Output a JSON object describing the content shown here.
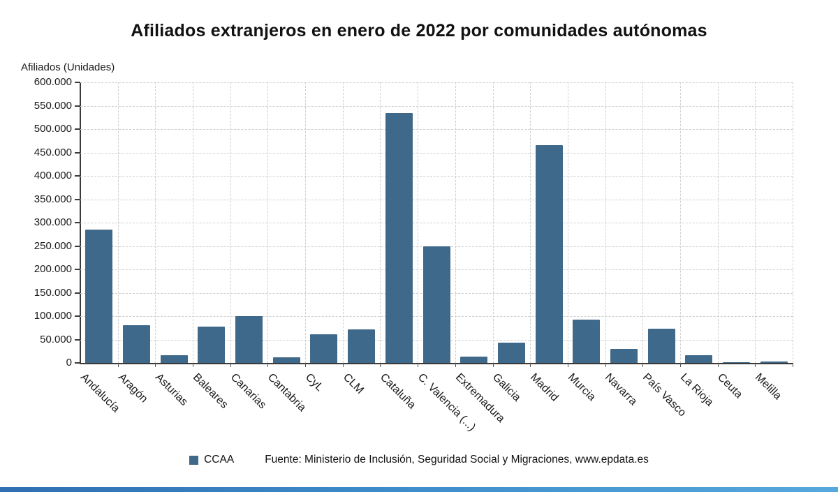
{
  "title": "Afiliados extranjeros en enero de 2022 por comunidades autónomas",
  "legend": {
    "label": "CCAA",
    "color": "#3f698a"
  },
  "source": {
    "prefix": "Fuente: Ministerio de Inclusión, Seguridad Social y Migraciones, ",
    "link": "www.epdata.es"
  },
  "chart_data": {
    "type": "bar",
    "title": "Afiliados extranjeros en enero de 2022 por comunidades autónomas",
    "ylabel": "Afiliados (Unidades)",
    "xlabel": "",
    "categories": [
      "Andalucía",
      "Aragón",
      "Asturias",
      "Baleares",
      "Canarias",
      "Cantabria",
      "CyL",
      "CLM",
      "Cataluña",
      "C. Valencia (...)",
      "Extremadura",
      "Galicia",
      "Madrid",
      "Murcia",
      "Navarra",
      "País Vasco",
      "La Rioja",
      "Ceuta",
      "Melilla"
    ],
    "values": [
      285000,
      80000,
      16000,
      77000,
      100000,
      12500,
      61000,
      72000,
      535000,
      250000,
      13000,
      44000,
      465000,
      92000,
      30000,
      73000,
      16500,
      2000,
      3500
    ],
    "ylim": [
      0,
      600000
    ],
    "ytick_labels": [
      "0",
      "50.000",
      "100.000",
      "150.000",
      "200.000",
      "250.000",
      "300.000",
      "350.000",
      "400.000",
      "450.000",
      "500.000",
      "550.000",
      "600.000"
    ],
    "grid": "dashed horizontal and vertical",
    "legend_position": "bottom",
    "bar_color": "#3f698a",
    "series_name": "CCAA"
  }
}
